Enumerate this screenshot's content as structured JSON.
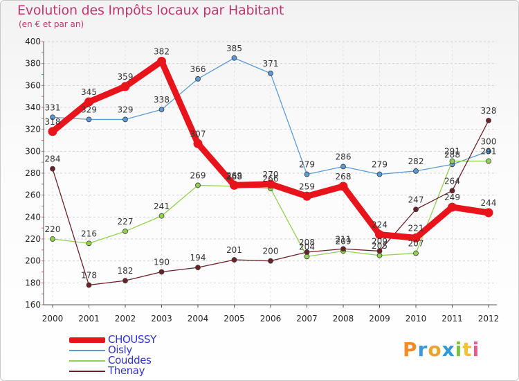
{
  "header": {
    "title": "Evolution des Impôts locaux par Habitant",
    "subtitle": "(en € et par an)"
  },
  "brand": {
    "logo_letters": [
      "P",
      "r",
      "o",
      "x",
      "i",
      "t",
      "i"
    ]
  },
  "chart_data": {
    "type": "line",
    "title": "Evolution des Impôts locaux par Habitant",
    "subtitle": "(en € et par an)",
    "xlabel": "",
    "ylabel": "",
    "categories": [
      "2000",
      "2001",
      "2002",
      "2003",
      "2004",
      "2005",
      "2006",
      "2007",
      "2008",
      "2009",
      "2010",
      "2011",
      "2012"
    ],
    "ylim": [
      160,
      400
    ],
    "yticks": [
      160,
      180,
      200,
      220,
      240,
      260,
      280,
      300,
      320,
      340,
      360,
      380,
      400
    ],
    "grid": "horizontal",
    "legend_position": "bottom-left",
    "series": [
      {
        "name": "CHOUSSY",
        "color": "#e8141b",
        "values": [
          318,
          345,
          359,
          382,
          307,
          269,
          270,
          259,
          268,
          224,
          221,
          249,
          244
        ]
      },
      {
        "name": "Oisly",
        "color": "#5b9bd5",
        "values": [
          331,
          329,
          329,
          338,
          366,
          385,
          371,
          279,
          286,
          279,
          282,
          288,
          300
        ]
      },
      {
        "name": "Couddes",
        "color": "#92d050",
        "values": [
          220,
          216,
          227,
          241,
          269,
          268,
          266,
          204,
          209,
          205,
          207,
          291,
          291
        ]
      },
      {
        "name": "Thenay",
        "color": "#6b2027",
        "values": [
          284,
          178,
          182,
          190,
          194,
          201,
          200,
          208,
          211,
          209,
          247,
          264,
          328
        ]
      }
    ]
  },
  "legend": {
    "items": [
      {
        "name": "CHOUSSY",
        "color": "#e8141b"
      },
      {
        "name": "Oisly",
        "color": "#5b9bd5"
      },
      {
        "name": "Couddes",
        "color": "#92d050"
      },
      {
        "name": "Thenay",
        "color": "#6b2027"
      }
    ]
  }
}
